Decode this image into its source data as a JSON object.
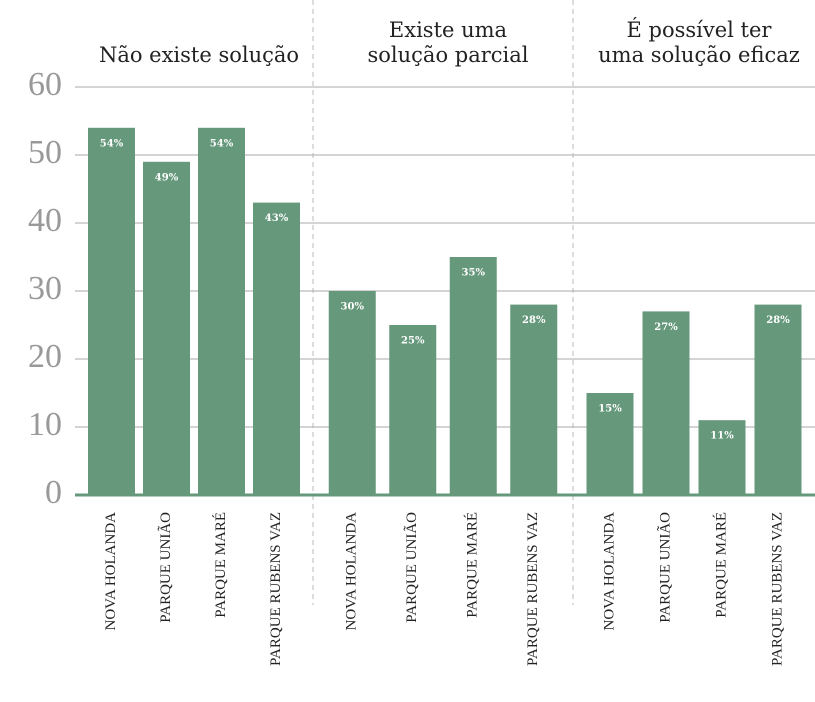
{
  "chart_data": {
    "type": "bar",
    "color": "#66987b",
    "grid": true,
    "ylim": [
      0,
      60
    ],
    "yticks": [
      0,
      10,
      20,
      30,
      40,
      50,
      60
    ],
    "groups": [
      {
        "title": [
          "Não existe solução"
        ],
        "categories": [
          "NOVA HOLANDA",
          "PARQUE UNIÃO",
          "PARQUE MARÉ",
          "PARQUE RUBENS VAZ"
        ],
        "values": [
          54,
          49,
          54,
          43
        ],
        "value_labels": [
          "54%",
          "49%",
          "54%",
          "43%"
        ]
      },
      {
        "title": [
          "Existe uma",
          "solução parcial"
        ],
        "categories": [
          "NOVA HOLANDA",
          "PARQUE UNIÃO",
          "PARQUE MARÉ",
          "PARQUE RUBENS VAZ"
        ],
        "values": [
          30,
          25,
          35,
          28
        ],
        "value_labels": [
          "30%",
          "25%",
          "35%",
          "28%"
        ]
      },
      {
        "title": [
          "É possível ter",
          "uma solução eficaz"
        ],
        "categories": [
          "NOVA HOLANDA",
          "PARQUE UNIÃO",
          "PARQUE MARÉ",
          "PARQUE RUBENS VAZ"
        ],
        "values": [
          15,
          27,
          11,
          28
        ],
        "value_labels": [
          "15%",
          "27%",
          "11%",
          "28%"
        ]
      }
    ]
  }
}
